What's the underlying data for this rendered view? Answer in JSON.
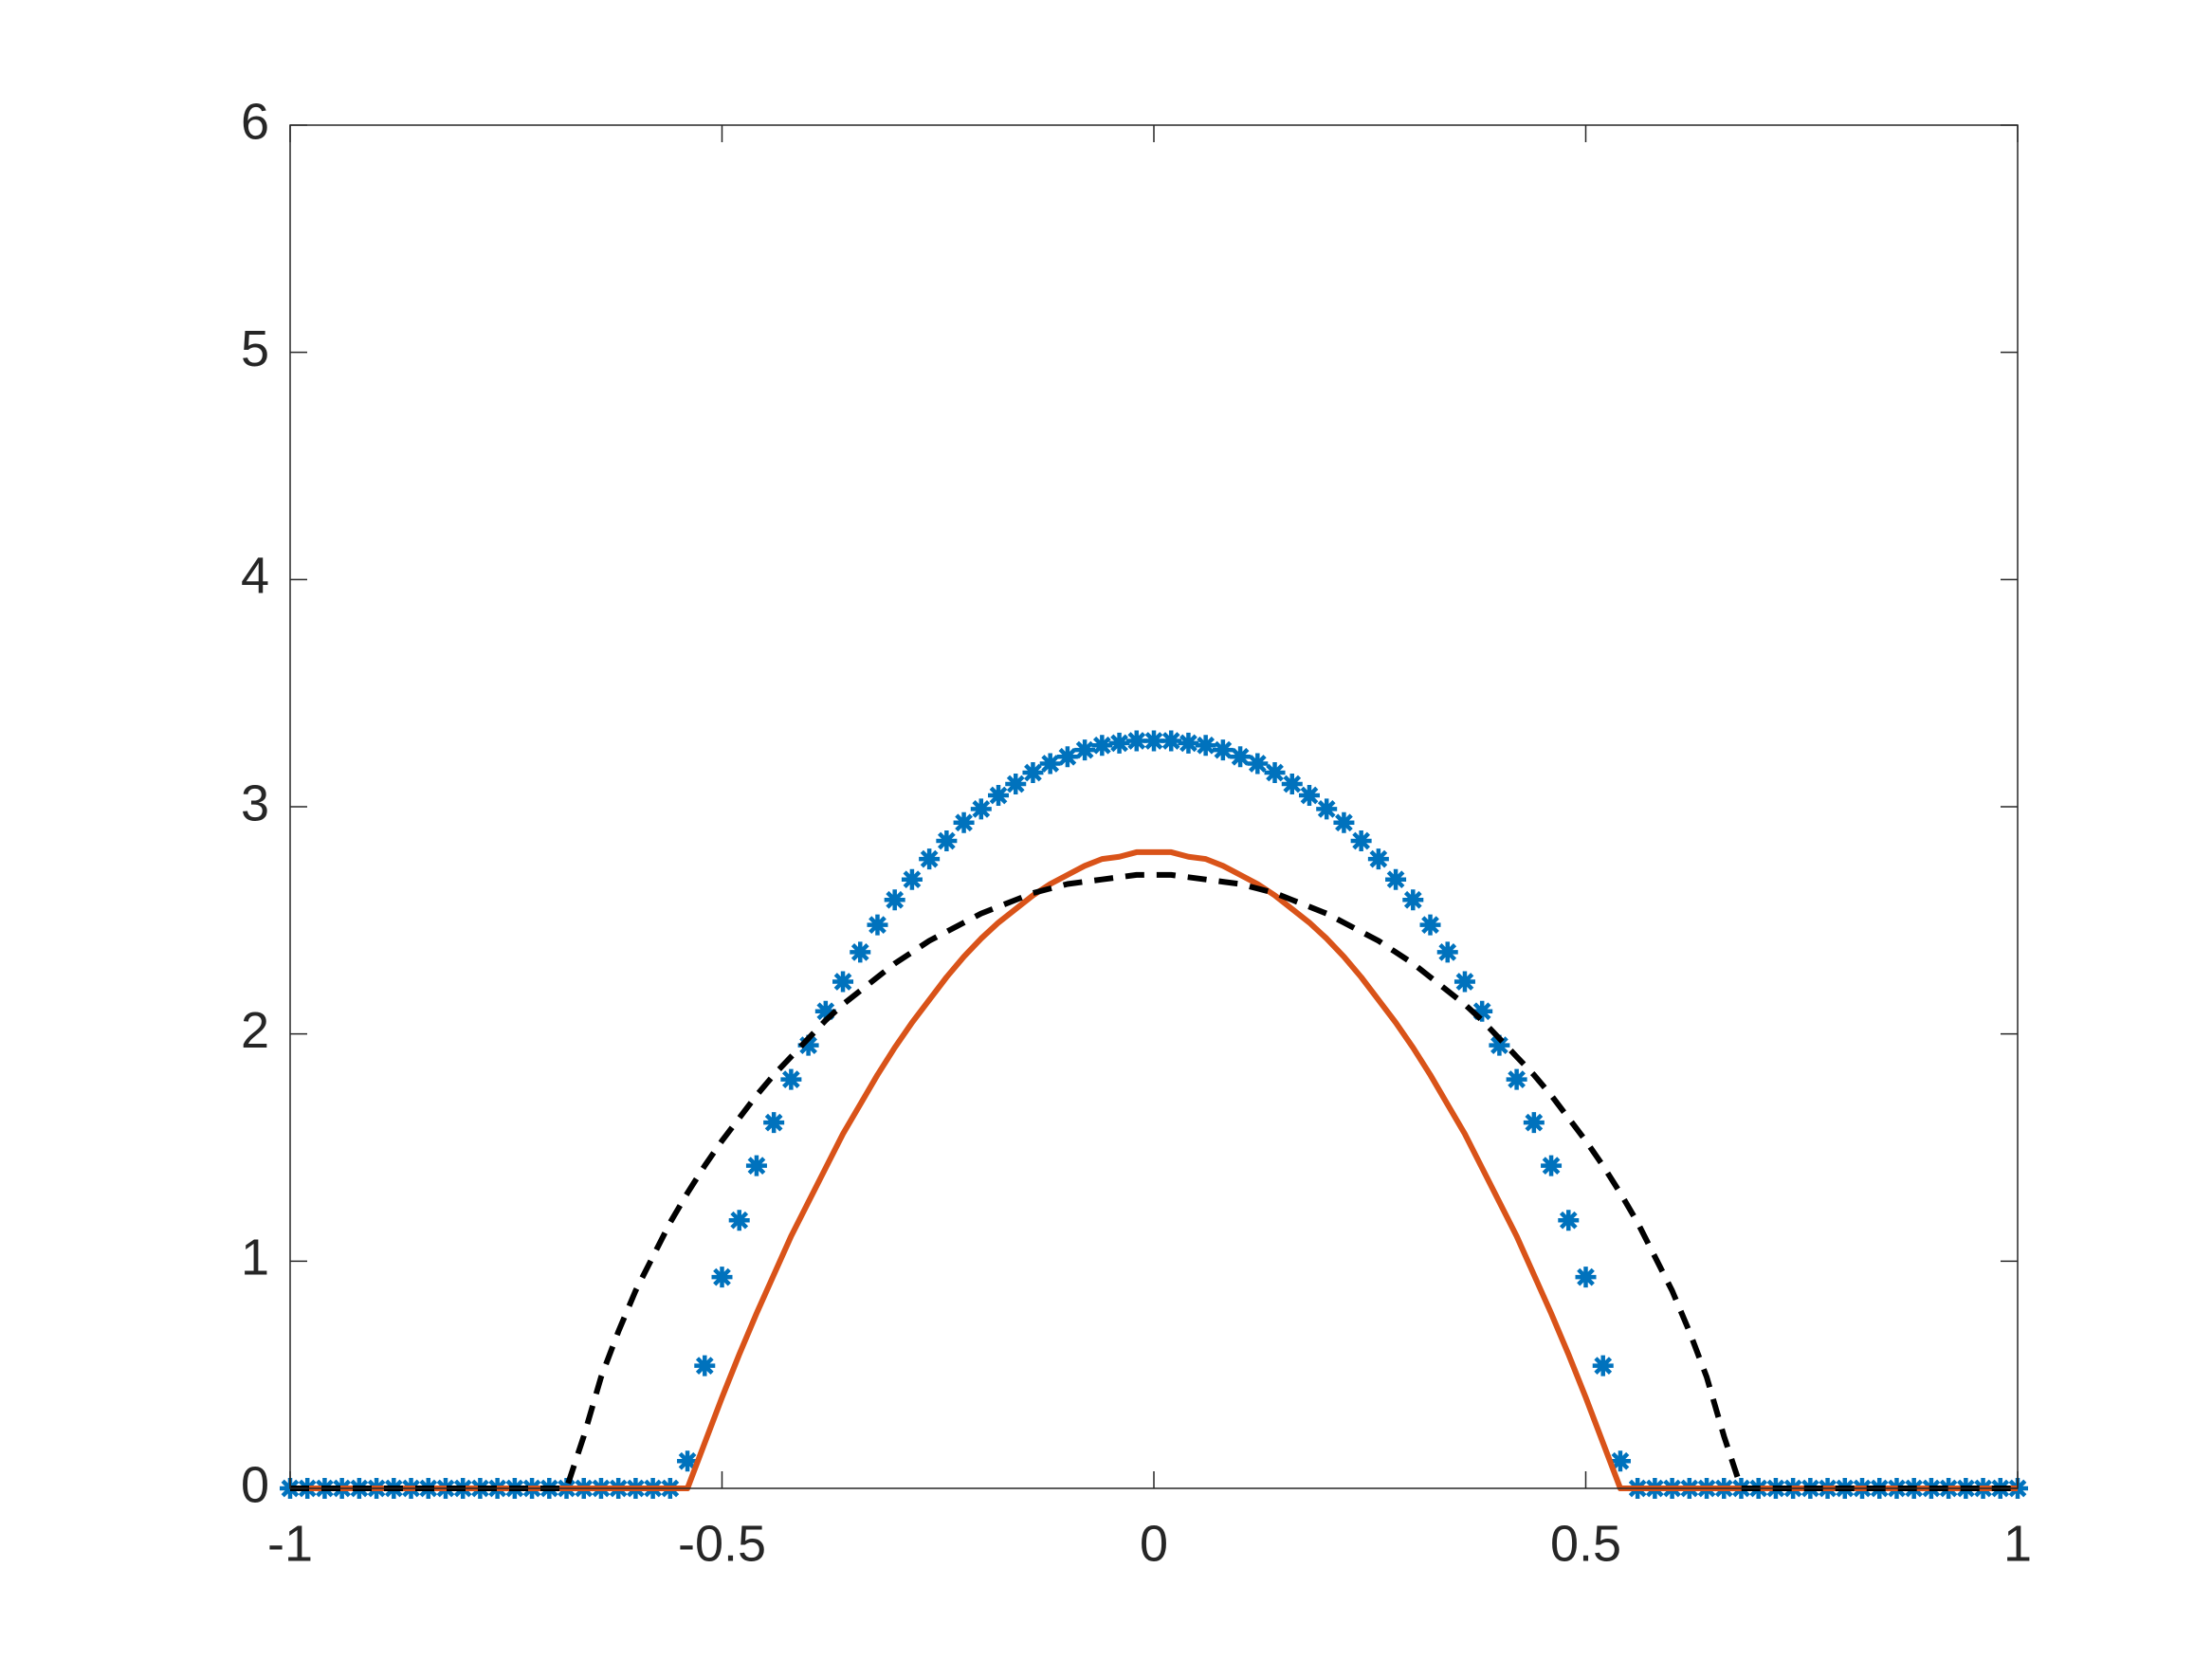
{
  "chart_data": {
    "type": "line",
    "x": [
      -1,
      -0.98,
      -0.96,
      -0.94,
      -0.92,
      -0.9,
      -0.88,
      -0.86,
      -0.84,
      -0.82,
      -0.8,
      -0.78,
      -0.76,
      -0.74,
      -0.72,
      -0.7,
      -0.68,
      -0.66,
      -0.64,
      -0.62,
      -0.6,
      -0.58,
      -0.56,
      -0.54,
      -0.52,
      -0.5,
      -0.48,
      -0.46,
      -0.44,
      -0.42,
      -0.4,
      -0.38,
      -0.36,
      -0.34,
      -0.32,
      -0.3,
      -0.28,
      -0.26,
      -0.24,
      -0.22,
      -0.2,
      -0.18,
      -0.16,
      -0.14,
      -0.12,
      -0.1,
      -0.08,
      -0.06,
      -0.04,
      -0.02,
      0,
      0.02,
      0.04,
      0.06,
      0.08,
      0.1,
      0.12,
      0.14,
      0.16,
      0.18,
      0.2,
      0.22,
      0.24,
      0.26,
      0.28,
      0.3,
      0.32,
      0.34,
      0.36,
      0.38,
      0.4,
      0.42,
      0.44,
      0.46,
      0.48,
      0.5,
      0.52,
      0.54,
      0.56,
      0.58,
      0.6,
      0.62,
      0.64,
      0.66,
      0.68,
      0.7,
      0.72,
      0.74,
      0.76,
      0.78,
      0.8,
      0.82,
      0.84,
      0.86,
      0.88,
      0.9,
      0.92,
      0.94,
      0.96,
      0.98,
      1
    ],
    "series": [
      {
        "color": "#0072bd",
        "line_style": "none",
        "marker": "*",
        "values": [
          0,
          0,
          0,
          0,
          0,
          0,
          0,
          0,
          0,
          0,
          0,
          0,
          0,
          0,
          0,
          0,
          0,
          0,
          0,
          0,
          0,
          0,
          0,
          0.12,
          0.54,
          0.93,
          1.18,
          1.42,
          1.61,
          1.8,
          1.95,
          2.1,
          2.23,
          2.36,
          2.48,
          2.59,
          2.68,
          2.77,
          2.85,
          2.93,
          2.99,
          3.05,
          3.1,
          3.15,
          3.19,
          3.22,
          3.25,
          3.27,
          3.28,
          3.29,
          3.29,
          3.29,
          3.28,
          3.27,
          3.25,
          3.22,
          3.19,
          3.15,
          3.1,
          3.05,
          2.99,
          2.93,
          2.85,
          2.77,
          2.68,
          2.59,
          2.48,
          2.36,
          2.23,
          2.1,
          1.95,
          1.8,
          1.61,
          1.42,
          1.18,
          0.93,
          0.54,
          0.12,
          0,
          0,
          0,
          0,
          0,
          0,
          0,
          0,
          0,
          0,
          0,
          0,
          0,
          0,
          0,
          0,
          0,
          0,
          0,
          0,
          0,
          0,
          0
        ]
      },
      {
        "color": "#d95319",
        "line_style": "-",
        "marker": "none",
        "values": [
          0,
          0,
          0,
          0,
          0,
          0,
          0,
          0,
          0,
          0,
          0,
          0,
          0,
          0,
          0,
          0,
          0,
          0,
          0,
          0,
          0,
          0,
          0,
          0,
          0.2,
          0.4,
          0.59,
          0.77,
          0.94,
          1.11,
          1.26,
          1.41,
          1.56,
          1.69,
          1.82,
          1.94,
          2.05,
          2.15,
          2.25,
          2.34,
          2.42,
          2.49,
          2.55,
          2.61,
          2.66,
          2.7,
          2.74,
          2.77,
          2.78,
          2.8,
          2.8,
          2.8,
          2.78,
          2.77,
          2.74,
          2.7,
          2.66,
          2.61,
          2.55,
          2.49,
          2.42,
          2.34,
          2.25,
          2.15,
          2.05,
          1.94,
          1.82,
          1.69,
          1.56,
          1.41,
          1.26,
          1.11,
          0.94,
          0.77,
          0.59,
          0.4,
          0.2,
          0,
          0,
          0,
          0,
          0,
          0,
          0,
          0,
          0,
          0,
          0,
          0,
          0,
          0,
          0,
          0,
          0,
          0,
          0,
          0,
          0,
          0,
          0,
          0
        ]
      },
      {
        "color": "#000000",
        "line_style": "--",
        "marker": "none",
        "values": [
          0,
          0,
          0,
          0,
          0,
          0,
          0,
          0,
          0,
          0,
          0,
          0,
          0,
          0,
          0,
          0,
          0,
          0.23,
          0.49,
          0.69,
          0.87,
          1.02,
          1.17,
          1.3,
          1.42,
          1.53,
          1.63,
          1.73,
          1.82,
          1.9,
          1.98,
          2.06,
          2.13,
          2.19,
          2.25,
          2.31,
          2.36,
          2.41,
          2.45,
          2.49,
          2.53,
          2.56,
          2.59,
          2.62,
          2.64,
          2.66,
          2.67,
          2.68,
          2.69,
          2.7,
          2.7,
          2.7,
          2.69,
          2.68,
          2.67,
          2.66,
          2.64,
          2.62,
          2.59,
          2.56,
          2.53,
          2.49,
          2.45,
          2.41,
          2.36,
          2.31,
          2.25,
          2.19,
          2.13,
          2.06,
          1.98,
          1.9,
          1.82,
          1.73,
          1.63,
          1.53,
          1.42,
          1.3,
          1.17,
          1.02,
          0.87,
          0.69,
          0.49,
          0.23,
          0,
          0,
          0,
          0,
          0,
          0,
          0,
          0,
          0,
          0,
          0,
          0,
          0,
          0,
          0,
          0,
          0
        ]
      }
    ],
    "xlim": [
      -1,
      1
    ],
    "ylim": [
      0,
      6
    ],
    "xticks": [
      -1,
      -0.5,
      0,
      0.5,
      1
    ],
    "yticks": [
      0,
      1,
      2,
      3,
      4,
      5,
      6
    ],
    "grid": false,
    "box": true
  }
}
